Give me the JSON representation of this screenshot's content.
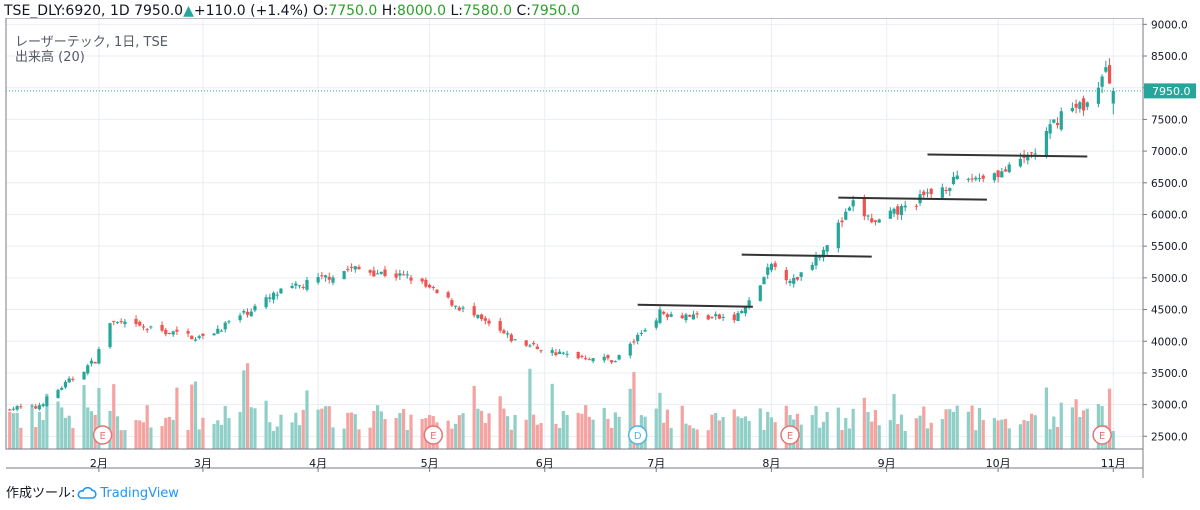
{
  "header": {
    "symbol": "TSE_DLY:6920, 1D",
    "last": "7950.0",
    "arrow": "▲",
    "change": "+110.0 (+1.4%)",
    "o_label": "O:",
    "o_value": "7750.0",
    "h_label": "H:",
    "h_value": "8000.0",
    "l_label": "L:",
    "l_value": "7580.0",
    "c_label": "C:",
    "c_value": "7950.0"
  },
  "legend": {
    "title": "レーザーテック, 1日, TSE",
    "volume": "出来高 (20)"
  },
  "footer": {
    "made_with": "作成ツール:",
    "brand": "TradingView",
    "brand_icon": "tradingview-cloud-icon"
  },
  "colors": {
    "up": "#26a69a",
    "down": "#ef5350",
    "up_volume": "#8fcfc7",
    "down_volume": "#f4a3a1",
    "price_line": "#26a69a",
    "grid": "#e9edf3",
    "earnings_marker": "#e57373",
    "dividend_marker": "#4fb3e8"
  },
  "chart_data": {
    "type": "candlestick",
    "title": "レーザーテック, 1日, TSE",
    "xlabel": "",
    "ylabel": "",
    "ylim": [
      2300,
      9100
    ],
    "y_ticks": [
      "9000.0",
      "8500.0",
      "8000.0",
      "7500.0",
      "7000.0",
      "6500.0",
      "6000.0",
      "5500.0",
      "5000.0",
      "4500.0",
      "4000.0",
      "3500.0",
      "3000.0",
      "2500.0"
    ],
    "x_ticks": [
      "2月",
      "3月",
      "4月",
      "5月",
      "6月",
      "7月",
      "8月",
      "9月",
      "10月",
      "11月"
    ],
    "current_price": {
      "label": "7950.0",
      "value": 7950
    },
    "anchors": [
      {
        "date": "2019-01-15",
        "close": 2950
      },
      {
        "date": "2019-01-31",
        "close": 3700
      },
      {
        "date": "2019-02-04",
        "close": 4300
      },
      {
        "date": "2019-03-01",
        "close": 4050
      },
      {
        "date": "2019-03-21",
        "close": 4750
      },
      {
        "date": "2019-04-10",
        "close": 5150
      },
      {
        "date": "2019-04-26",
        "close": 5000
      },
      {
        "date": "2019-05-10",
        "close": 4500
      },
      {
        "date": "2019-05-24",
        "close": 4000
      },
      {
        "date": "2019-06-05",
        "close": 3800
      },
      {
        "date": "2019-06-20",
        "close": 3700
      },
      {
        "date": "2019-07-02",
        "close": 4450
      },
      {
        "date": "2019-07-22",
        "close": 4350
      },
      {
        "date": "2019-07-26",
        "close": 4600
      },
      {
        "date": "2019-08-01",
        "close": 5200
      },
      {
        "date": "2019-08-07",
        "close": 4950
      },
      {
        "date": "2019-08-14",
        "close": 5400
      },
      {
        "date": "2019-08-23",
        "close": 6150
      },
      {
        "date": "2019-08-29",
        "close": 5850
      },
      {
        "date": "2019-09-18",
        "close": 6500
      },
      {
        "date": "2019-10-04",
        "close": 6700
      },
      {
        "date": "2019-10-11",
        "close": 7000
      },
      {
        "date": "2019-10-18",
        "close": 7600
      },
      {
        "date": "2019-10-25",
        "close": 7750
      },
      {
        "date": "2019-10-30",
        "close": 8250
      },
      {
        "date": "2019-11-01",
        "close": 7950
      }
    ],
    "resistance_lines": [
      {
        "from": "2019-06-26",
        "to": "2019-07-27",
        "price": 4560
      },
      {
        "from": "2019-07-24",
        "to": "2019-08-28",
        "price": 5350
      },
      {
        "from": "2019-08-19",
        "to": "2019-09-28",
        "price": 6250
      },
      {
        "from": "2019-09-12",
        "to": "2019-10-25",
        "price": 6930
      }
    ],
    "events": [
      {
        "label": "E",
        "date": "2019-02-02"
      },
      {
        "label": "E",
        "date": "2019-05-02"
      },
      {
        "label": "D",
        "date": "2019-06-26"
      },
      {
        "label": "E",
        "date": "2019-08-06"
      },
      {
        "label": "E",
        "date": "2019-10-29"
      }
    ]
  }
}
